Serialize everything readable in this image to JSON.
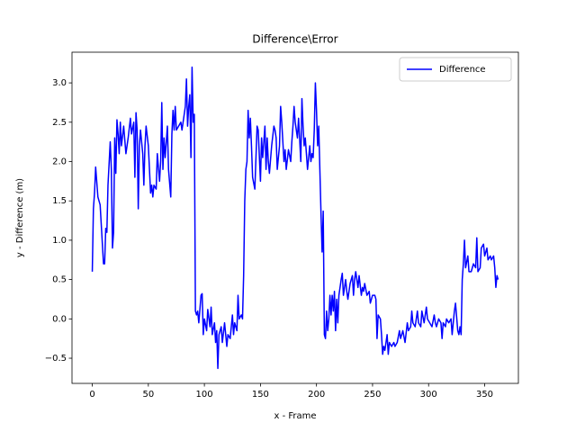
{
  "chart_data": {
    "type": "line",
    "title": "Difference\\Error",
    "x_label": "x - Frame",
    "y_label": "y - Difference (m)",
    "x": [
      0,
      1,
      2,
      3,
      5,
      7,
      9,
      10,
      11,
      12,
      13,
      14,
      16,
      17,
      18,
      19,
      20,
      21,
      22,
      23,
      24,
      25,
      26,
      28,
      30,
      32,
      34,
      35,
      37,
      38,
      39,
      40,
      41,
      42,
      43,
      45,
      46,
      47,
      48,
      50,
      52,
      53,
      54,
      55,
      57,
      58,
      60,
      61,
      62,
      63,
      64,
      65,
      67,
      68,
      70,
      71,
      72,
      73,
      74,
      75,
      77,
      79,
      80,
      82,
      83,
      84,
      85,
      86,
      87,
      88,
      89,
      90,
      91,
      92,
      93,
      94,
      95,
      96,
      97,
      98,
      99,
      100,
      102,
      103,
      105,
      106,
      107,
      109,
      110,
      111,
      112,
      113,
      115,
      116,
      118,
      120,
      121,
      123,
      125,
      126,
      127,
      129,
      130,
      131,
      133,
      134,
      135,
      136,
      137,
      138,
      139,
      140,
      141,
      142,
      143,
      145,
      147,
      148,
      150,
      151,
      152,
      154,
      155,
      156,
      157,
      158,
      160,
      162,
      163,
      164,
      165,
      167,
      168,
      169,
      171,
      172,
      173,
      175,
      177,
      178,
      179,
      180,
      181,
      183,
      184,
      186,
      187,
      188,
      189,
      190,
      191,
      192,
      194,
      195,
      196,
      197,
      198,
      199,
      200,
      201,
      202,
      203,
      204,
      205,
      206,
      207,
      208,
      209,
      210,
      211,
      212,
      213,
      214,
      215,
      216,
      217,
      218,
      219,
      220,
      222,
      223,
      224,
      226,
      227,
      228,
      230,
      232,
      233,
      234,
      235,
      237,
      238,
      240,
      241,
      242,
      243,
      245,
      247,
      248,
      250,
      252,
      253,
      254,
      255,
      257,
      258,
      259,
      260,
      261,
      263,
      264,
      265,
      267,
      269,
      270,
      272,
      274,
      275,
      277,
      279,
      281,
      282,
      284,
      285,
      286,
      288,
      290,
      291,
      293,
      294,
      296,
      298,
      299,
      301,
      303,
      305,
      306,
      307,
      309,
      311,
      312,
      313,
      315,
      316,
      318,
      320,
      321,
      323,
      324,
      326,
      327,
      328,
      329,
      330,
      331,
      332,
      333,
      335,
      336,
      338,
      340,
      342,
      343,
      344,
      346,
      347,
      349,
      350,
      352,
      353,
      355,
      356,
      358,
      359,
      360,
      361,
      362
    ],
    "series": [
      {
        "name": "Difference",
        "color": "#0000ff",
        "values": [
          0.6,
          1.4,
          1.6,
          1.93,
          1.55,
          1.45,
          0.95,
          0.7,
          0.7,
          1.15,
          1.1,
          1.7,
          2.25,
          1.9,
          0.9,
          1.1,
          2.3,
          1.85,
          2.53,
          2.35,
          2.1,
          2.5,
          2.2,
          2.45,
          2.1,
          2.3,
          2.55,
          2.35,
          2.5,
          1.8,
          2.62,
          2.4,
          1.4,
          2.2,
          2.4,
          2.1,
          1.7,
          2.2,
          2.45,
          2.2,
          1.6,
          1.7,
          1.55,
          1.7,
          1.65,
          2.1,
          1.75,
          2.0,
          2.75,
          1.9,
          2.3,
          2.05,
          2.45,
          1.9,
          1.55,
          2.35,
          2.65,
          2.4,
          2.7,
          2.4,
          2.45,
          2.5,
          2.4,
          2.6,
          2.7,
          3.05,
          2.45,
          2.7,
          2.85,
          2.05,
          3.2,
          2.5,
          2.6,
          0.1,
          0.05,
          0.1,
          -0.05,
          0.12,
          0.3,
          0.32,
          -0.2,
          0.0,
          -0.15,
          0.12,
          -0.1,
          0.15,
          -0.2,
          -0.05,
          -0.3,
          -0.15,
          -0.63,
          -0.2,
          -0.1,
          -0.3,
          -0.05,
          -0.35,
          -0.2,
          -0.25,
          0.05,
          -0.2,
          -0.05,
          -0.15,
          0.3,
          0.0,
          0.05,
          0.0,
          0.55,
          1.5,
          1.9,
          2.0,
          2.65,
          2.3,
          2.55,
          2.2,
          1.8,
          1.65,
          2.45,
          2.4,
          1.75,
          2.3,
          2.05,
          2.45,
          1.9,
          2.3,
          2.0,
          1.85,
          2.2,
          2.45,
          2.4,
          2.3,
          1.9,
          2.2,
          2.7,
          2.5,
          2.0,
          2.15,
          1.9,
          2.15,
          2.0,
          2.25,
          2.45,
          2.7,
          2.5,
          2.3,
          2.55,
          2.0,
          2.8,
          2.45,
          2.2,
          2.3,
          2.1,
          1.9,
          2.2,
          2.0,
          2.1,
          2.05,
          2.4,
          3.0,
          2.65,
          2.2,
          2.45,
          1.9,
          1.35,
          0.85,
          1.37,
          -0.2,
          -0.25,
          0.1,
          -0.15,
          0.0,
          0.3,
          0.05,
          0.3,
          0.1,
          0.35,
          -0.15,
          0.25,
          -0.05,
          0.3,
          0.5,
          0.58,
          0.3,
          0.5,
          0.35,
          0.25,
          0.45,
          0.55,
          0.3,
          0.5,
          0.6,
          0.4,
          0.55,
          0.3,
          0.4,
          0.35,
          0.45,
          0.3,
          0.35,
          0.2,
          0.3,
          0.3,
          0.25,
          -0.25,
          0.05,
          0.0,
          -0.2,
          -0.45,
          -0.35,
          -0.4,
          -0.2,
          -0.45,
          -0.3,
          -0.35,
          -0.3,
          -0.35,
          -0.3,
          -0.15,
          -0.25,
          -0.15,
          -0.3,
          -0.05,
          -0.15,
          -0.1,
          0.1,
          -0.05,
          -0.1,
          0.1,
          -0.05,
          -0.1,
          0.1,
          -0.05,
          0.15,
          0.0,
          -0.05,
          -0.1,
          0.05,
          -0.05,
          -0.1,
          0.0,
          -0.05,
          -0.25,
          -0.05,
          -0.1,
          0.0,
          -0.05,
          0.0,
          -0.2,
          0.1,
          0.2,
          -0.15,
          -0.2,
          -0.1,
          -0.2,
          0.5,
          0.7,
          1.0,
          0.65,
          0.8,
          0.6,
          0.6,
          0.7,
          0.65,
          1.03,
          0.6,
          0.65,
          0.9,
          0.95,
          0.8,
          0.9,
          0.75,
          0.8,
          0.75,
          0.8,
          0.65,
          0.4,
          0.55,
          0.5
        ]
      }
    ],
    "xlim": [
      -18.1,
      380.1
    ],
    "ylim": [
      -0.82,
      3.39
    ],
    "xticks": [
      0,
      50,
      100,
      150,
      200,
      250,
      300,
      350
    ],
    "yticks": [
      {
        "value": -0.5,
        "label": "−0.5"
      },
      {
        "value": 0,
        "label": "0.0"
      },
      0.5,
      {
        "value": 1,
        "label": "1.0"
      },
      1.5,
      {
        "value": 2,
        "label": "2.0"
      },
      2.5,
      {
        "value": 3,
        "label": "3.0"
      }
    ],
    "grid": false,
    "legend": "upper right"
  }
}
